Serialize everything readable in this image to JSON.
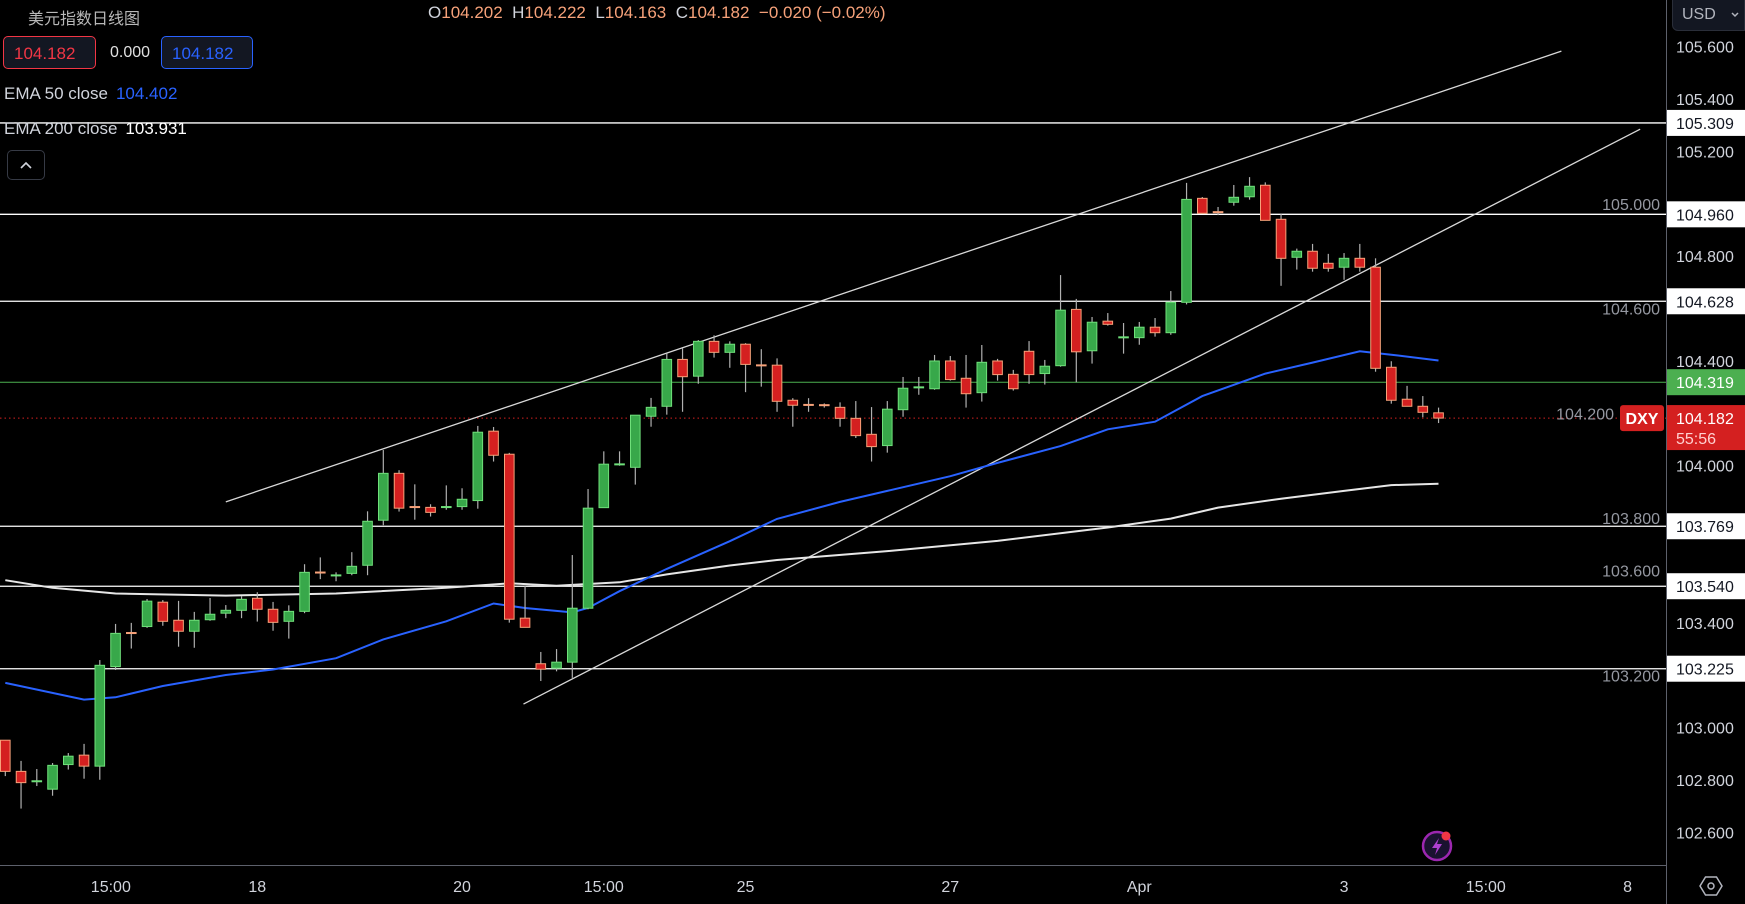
{
  "header": {
    "title": "美元指数日线图",
    "ohlc": {
      "o_label": "O",
      "o": "104.202",
      "h_label": "H",
      "h": "104.222",
      "l_label": "L",
      "l": "104.163",
      "c_label": "C",
      "c": "104.182",
      "change": "−0.020 (−0.02%)"
    },
    "sell_price": "104.182",
    "spread": "0.000",
    "buy_price": "104.182",
    "ema50": {
      "label": "EMA 50 close",
      "value": "104.402"
    },
    "ema200": {
      "label": "EMA 200 close",
      "value": "103.931"
    }
  },
  "currency_button": {
    "label": "USD",
    "icon": "chevron-down-icon"
  },
  "icons": {
    "collapse": "chevron-up-icon",
    "settings": "hexagon-settings-icon",
    "bolt": "lightning-icon"
  },
  "colors": {
    "up": "#38a84a",
    "up_border": "#6fe07a",
    "down": "#d42020",
    "down_border": "#f7a27a",
    "wick": "#b0b0b0",
    "ema50": "#2962ff",
    "ema200": "#e6e6e6",
    "last_price": "#d42020",
    "prev_close": "#4caf50",
    "sr_line": "#ffffff"
  },
  "chart_data": {
    "type": "candlestick",
    "symbol": "DXY",
    "last_price": "104.182",
    "countdown": "55:56",
    "prev_close_label": "104.319",
    "prev_close": 104.319,
    "ylim": [
      102.5,
      105.75
    ],
    "y_ticks": [
      "105.600",
      "105.400",
      "105.200",
      "105.000",
      "104.800",
      "104.600",
      "104.400",
      "104.200",
      "104.000",
      "103.800",
      "103.600",
      "103.400",
      "103.200",
      "103.000",
      "102.800",
      "102.600"
    ],
    "x_ticks": [
      {
        "label": "15:00",
        "at": 6.7
      },
      {
        "label": "18",
        "at": 16
      },
      {
        "label": "20",
        "at": 29
      },
      {
        "label": "15:00",
        "at": 38
      },
      {
        "label": "25",
        "at": 47
      },
      {
        "label": "27",
        "at": 60
      },
      {
        "label": "Apr",
        "at": 72
      },
      {
        "label": "3",
        "at": 85
      },
      {
        "label": "15:00",
        "at": 94
      },
      {
        "label": "8",
        "at": 103
      }
    ],
    "horizontal_levels": [
      "105.309",
      "104.960",
      "104.628",
      "103.769",
      "103.540",
      "103.225"
    ],
    "trend_lines": [
      {
        "from": [
          14.0,
          103.862
        ],
        "to": [
          98.8,
          105.583
        ]
      },
      {
        "from": [
          32.9,
          103.09
        ],
        "to": [
          103.8,
          105.285
        ]
      }
    ],
    "candles_ohlc": [
      [
        102.952,
        102.952,
        102.815,
        102.833
      ],
      [
        102.833,
        102.873,
        102.691,
        102.79
      ],
      [
        102.793,
        102.842,
        102.777,
        102.796
      ],
      [
        102.765,
        102.865,
        102.74,
        102.856
      ],
      [
        102.859,
        102.903,
        102.84,
        102.891
      ],
      [
        102.895,
        102.938,
        102.805,
        102.853
      ],
      [
        102.853,
        103.258,
        102.801,
        103.238
      ],
      [
        103.233,
        103.396,
        103.22,
        103.36
      ],
      [
        103.362,
        103.4,
        103.302,
        103.36
      ],
      [
        103.386,
        103.491,
        103.381,
        103.483
      ],
      [
        103.479,
        103.487,
        103.389,
        103.406
      ],
      [
        103.41,
        103.484,
        103.309,
        103.368
      ],
      [
        103.368,
        103.442,
        103.305,
        103.41
      ],
      [
        103.412,
        103.495,
        103.408,
        103.433
      ],
      [
        103.437,
        103.468,
        103.418,
        103.448
      ],
      [
        103.448,
        103.502,
        103.418,
        103.49
      ],
      [
        103.494,
        103.517,
        103.405,
        103.452
      ],
      [
        103.452,
        103.48,
        103.37,
        103.402
      ],
      [
        103.406,
        103.467,
        103.34,
        103.444
      ],
      [
        103.444,
        103.624,
        103.437,
        103.593
      ],
      [
        103.593,
        103.65,
        103.567,
        103.588
      ],
      [
        103.575,
        103.593,
        103.559,
        103.582
      ],
      [
        103.589,
        103.67,
        103.582,
        103.616
      ],
      [
        103.62,
        103.826,
        103.582,
        103.788
      ],
      [
        103.792,
        104.06,
        103.773,
        103.971
      ],
      [
        103.971,
        103.983,
        103.825,
        103.838
      ],
      [
        103.843,
        103.929,
        103.794,
        103.841
      ],
      [
        103.841,
        103.853,
        103.806,
        103.822
      ],
      [
        103.843,
        103.925,
        103.832,
        103.843
      ],
      [
        103.844,
        103.914,
        103.832,
        103.872
      ],
      [
        103.867,
        104.152,
        103.836,
        104.128
      ],
      [
        104.132,
        104.148,
        104.016,
        104.04
      ],
      [
        104.044,
        104.049,
        103.401,
        103.414
      ],
      [
        103.418,
        103.542,
        103.383,
        103.383
      ],
      [
        103.244,
        103.289,
        103.178,
        103.223
      ],
      [
        103.227,
        103.3,
        103.215,
        103.25
      ],
      [
        103.25,
        103.659,
        103.19,
        103.456
      ],
      [
        103.456,
        103.911,
        103.452,
        103.838
      ],
      [
        103.84,
        104.055,
        103.84,
        104.006
      ],
      [
        104.004,
        104.055,
        104.0,
        104.006
      ],
      [
        103.994,
        104.193,
        103.928,
        104.193
      ],
      [
        104.189,
        104.259,
        104.149,
        104.223
      ],
      [
        104.227,
        104.429,
        104.195,
        104.406
      ],
      [
        104.406,
        104.448,
        104.206,
        104.34
      ],
      [
        104.342,
        104.48,
        104.313,
        104.475
      ],
      [
        104.475,
        104.498,
        104.413,
        104.433
      ],
      [
        104.433,
        104.475,
        104.374,
        104.464
      ],
      [
        104.464,
        104.468,
        104.281,
        104.387
      ],
      [
        104.384,
        104.445,
        104.302,
        104.382
      ],
      [
        104.384,
        104.41,
        104.206,
        104.246
      ],
      [
        104.25,
        104.258,
        104.149,
        104.231
      ],
      [
        104.233,
        104.258,
        104.206,
        104.231
      ],
      [
        104.232,
        104.238,
        104.222,
        104.23
      ],
      [
        104.223,
        104.242,
        104.149,
        104.181
      ],
      [
        104.181,
        104.247,
        104.106,
        104.115
      ],
      [
        104.12,
        104.224,
        104.016,
        104.073
      ],
      [
        104.077,
        104.247,
        104.05,
        104.216
      ],
      [
        104.214,
        104.339,
        104.187,
        104.296
      ],
      [
        104.298,
        104.339,
        104.271,
        104.3
      ],
      [
        104.294,
        104.423,
        104.29,
        104.4
      ],
      [
        104.4,
        104.419,
        104.325,
        104.329
      ],
      [
        104.334,
        104.423,
        104.222,
        104.275
      ],
      [
        104.279,
        104.461,
        104.245,
        104.395
      ],
      [
        104.4,
        104.408,
        104.325,
        104.348
      ],
      [
        104.349,
        104.366,
        104.287,
        104.294
      ],
      [
        104.437,
        104.476,
        104.313,
        104.348
      ],
      [
        104.352,
        104.404,
        104.31,
        104.38
      ],
      [
        104.382,
        104.728,
        104.378,
        104.594
      ],
      [
        104.597,
        104.637,
        104.319,
        104.435
      ],
      [
        104.439,
        104.568,
        104.39,
        104.548
      ],
      [
        104.552,
        104.583,
        104.535,
        104.54
      ],
      [
        104.488,
        104.545,
        104.428,
        104.491
      ],
      [
        104.489,
        104.549,
        104.462,
        104.529
      ],
      [
        104.529,
        104.564,
        104.493,
        104.508
      ],
      [
        104.508,
        104.667,
        104.5,
        104.624
      ],
      [
        104.624,
        105.08,
        104.616,
        105.017
      ],
      [
        105.021,
        105.026,
        104.964,
        104.964
      ],
      [
        104.969,
        104.988,
        104.957,
        104.966
      ],
      [
        105.006,
        105.072,
        104.993,
        105.025
      ],
      [
        105.027,
        105.102,
        105.016,
        105.067
      ],
      [
        105.071,
        105.082,
        104.937,
        104.937
      ],
      [
        104.941,
        104.961,
        104.687,
        104.792
      ],
      [
        104.796,
        104.829,
        104.749,
        104.819
      ],
      [
        104.819,
        104.847,
        104.741,
        104.754
      ],
      [
        104.773,
        104.809,
        104.741,
        104.754
      ],
      [
        104.758,
        104.812,
        104.71,
        104.792
      ],
      [
        104.792,
        104.847,
        104.741,
        104.758
      ],
      [
        104.758,
        104.792,
        104.359,
        104.372
      ],
      [
        104.376,
        104.399,
        104.237,
        104.25
      ],
      [
        104.254,
        104.305,
        104.227,
        104.227
      ],
      [
        104.227,
        104.266,
        104.185,
        104.204
      ],
      [
        104.202,
        104.222,
        104.163,
        104.182
      ]
    ],
    "ema50": [
      [
        0,
        103.171
      ],
      [
        5,
        103.107
      ],
      [
        7,
        103.116
      ],
      [
        10,
        103.159
      ],
      [
        14,
        103.201
      ],
      [
        17,
        103.222
      ],
      [
        21,
        103.265
      ],
      [
        24,
        103.337
      ],
      [
        28,
        103.406
      ],
      [
        31,
        103.474
      ],
      [
        33,
        103.457
      ],
      [
        36,
        103.44
      ],
      [
        37,
        103.457
      ],
      [
        39,
        103.521
      ],
      [
        42,
        103.606
      ],
      [
        46,
        103.712
      ],
      [
        49,
        103.797
      ],
      [
        53,
        103.862
      ],
      [
        56,
        103.904
      ],
      [
        60,
        103.96
      ],
      [
        63,
        104.011
      ],
      [
        67,
        104.075
      ],
      [
        70,
        104.139
      ],
      [
        73,
        104.168
      ],
      [
        76,
        104.266
      ],
      [
        80,
        104.352
      ],
      [
        83,
        104.394
      ],
      [
        86,
        104.437
      ],
      [
        88,
        104.424
      ],
      [
        91,
        104.402
      ]
    ],
    "ema200": [
      [
        0,
        103.563
      ],
      [
        3,
        103.534
      ],
      [
        7,
        103.512
      ],
      [
        14,
        103.504
      ],
      [
        21,
        103.512
      ],
      [
        28,
        103.534
      ],
      [
        32,
        103.551
      ],
      [
        35,
        103.542
      ],
      [
        39,
        103.555
      ],
      [
        42,
        103.585
      ],
      [
        46,
        103.619
      ],
      [
        49,
        103.64
      ],
      [
        56,
        103.674
      ],
      [
        63,
        103.713
      ],
      [
        70,
        103.764
      ],
      [
        74,
        103.798
      ],
      [
        77,
        103.84
      ],
      [
        81,
        103.874
      ],
      [
        85,
        103.904
      ],
      [
        88,
        103.926
      ],
      [
        91,
        103.931
      ]
    ]
  }
}
